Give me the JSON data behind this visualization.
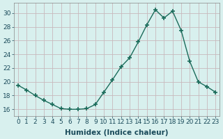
{
  "x": [
    0,
    1,
    2,
    3,
    4,
    5,
    6,
    7,
    8,
    9,
    10,
    11,
    12,
    13,
    14,
    15,
    16,
    17,
    18,
    19,
    20,
    21,
    22,
    23
  ],
  "y": [
    19.5,
    18.8,
    18.0,
    17.3,
    16.7,
    16.1,
    16.0,
    16.0,
    16.1,
    16.7,
    18.5,
    20.3,
    22.2,
    23.5,
    25.8,
    28.3,
    30.5,
    29.3,
    30.3,
    27.5,
    23.0,
    20.0,
    19.3,
    18.5
  ],
  "xlabel": "Humidex (Indice chaleur)",
  "ylim": [
    15.0,
    31.5
  ],
  "xlim": [
    -0.5,
    23.5
  ],
  "yticks": [
    16,
    18,
    20,
    22,
    24,
    26,
    28,
    30
  ],
  "xticks": [
    0,
    1,
    2,
    3,
    4,
    5,
    6,
    7,
    8,
    9,
    10,
    11,
    12,
    13,
    14,
    15,
    16,
    17,
    18,
    19,
    20,
    21,
    22,
    23
  ],
  "line_color": "#1a6b5a",
  "marker": "+",
  "marker_size": 4,
  "marker_lw": 1.2,
  "bg_color": "#d8f0ee",
  "grid_color": "#c8b8bc",
  "tick_label_fontsize": 6.5,
  "xlabel_fontsize": 7.5,
  "line_width": 1.0
}
